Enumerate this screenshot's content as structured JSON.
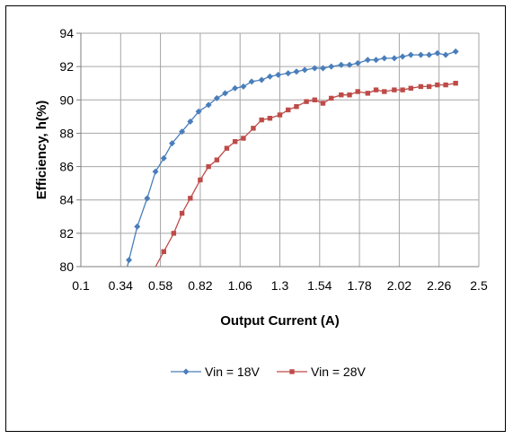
{
  "chart_data": {
    "type": "line",
    "xlabel": "Output Current (A)",
    "ylabel": "Efficiency, h(%)",
    "xlim": [
      0.1,
      2.5
    ],
    "ylim": [
      80,
      94
    ],
    "x_ticks": [
      "0.1",
      "0.34",
      "0.58",
      "0.82",
      "1.06",
      "1.3",
      "1.54",
      "1.78",
      "2.02",
      "2.26",
      "2.5"
    ],
    "y_ticks": [
      "80",
      "82",
      "84",
      "86",
      "88",
      "90",
      "92",
      "94"
    ],
    "grid": true,
    "legend_position": "bottom",
    "series": [
      {
        "name": "Vin = 18V",
        "color": "#4a7ebb",
        "marker": "diamond",
        "points": [
          [
            0.39,
            80.4
          ],
          [
            0.44,
            82.4
          ],
          [
            0.5,
            84.1
          ],
          [
            0.55,
            85.7
          ],
          [
            0.6,
            86.5
          ],
          [
            0.65,
            87.4
          ],
          [
            0.71,
            88.1
          ],
          [
            0.76,
            88.7
          ],
          [
            0.81,
            89.3
          ],
          [
            0.87,
            89.7
          ],
          [
            0.92,
            90.1
          ],
          [
            0.97,
            90.4
          ],
          [
            1.03,
            90.7
          ],
          [
            1.08,
            90.8
          ],
          [
            1.13,
            91.1
          ],
          [
            1.19,
            91.2
          ],
          [
            1.24,
            91.4
          ],
          [
            1.29,
            91.5
          ],
          [
            1.35,
            91.6
          ],
          [
            1.4,
            91.7
          ],
          [
            1.45,
            91.8
          ],
          [
            1.51,
            91.9
          ],
          [
            1.56,
            91.9
          ],
          [
            1.61,
            92.0
          ],
          [
            1.67,
            92.1
          ],
          [
            1.72,
            92.1
          ],
          [
            1.77,
            92.2
          ],
          [
            1.83,
            92.4
          ],
          [
            1.88,
            92.4
          ],
          [
            1.93,
            92.5
          ],
          [
            1.99,
            92.5
          ],
          [
            2.04,
            92.6
          ],
          [
            2.09,
            92.7
          ],
          [
            2.15,
            92.7
          ],
          [
            2.2,
            92.7
          ],
          [
            2.25,
            92.8
          ],
          [
            2.3,
            92.7
          ],
          [
            2.36,
            92.9
          ]
        ]
      },
      {
        "name": "Vin = 28V",
        "color": "#be4b48",
        "marker": "square",
        "points": [
          [
            0.6,
            80.9
          ],
          [
            0.66,
            82.0
          ],
          [
            0.71,
            83.2
          ],
          [
            0.76,
            84.1
          ],
          [
            0.82,
            85.2
          ],
          [
            0.87,
            86.0
          ],
          [
            0.92,
            86.4
          ],
          [
            0.98,
            87.1
          ],
          [
            1.03,
            87.5
          ],
          [
            1.08,
            87.7
          ],
          [
            1.14,
            88.3
          ],
          [
            1.19,
            88.8
          ],
          [
            1.24,
            88.9
          ],
          [
            1.3,
            89.1
          ],
          [
            1.35,
            89.4
          ],
          [
            1.4,
            89.6
          ],
          [
            1.46,
            89.9
          ],
          [
            1.51,
            90.0
          ],
          [
            1.56,
            89.8
          ],
          [
            1.61,
            90.1
          ],
          [
            1.67,
            90.3
          ],
          [
            1.72,
            90.3
          ],
          [
            1.77,
            90.5
          ],
          [
            1.83,
            90.4
          ],
          [
            1.88,
            90.6
          ],
          [
            1.93,
            90.5
          ],
          [
            1.99,
            90.6
          ],
          [
            2.04,
            90.6
          ],
          [
            2.09,
            90.7
          ],
          [
            2.15,
            90.8
          ],
          [
            2.2,
            90.8
          ],
          [
            2.25,
            90.9
          ],
          [
            2.3,
            90.9
          ],
          [
            2.36,
            91.0
          ]
        ]
      }
    ]
  }
}
